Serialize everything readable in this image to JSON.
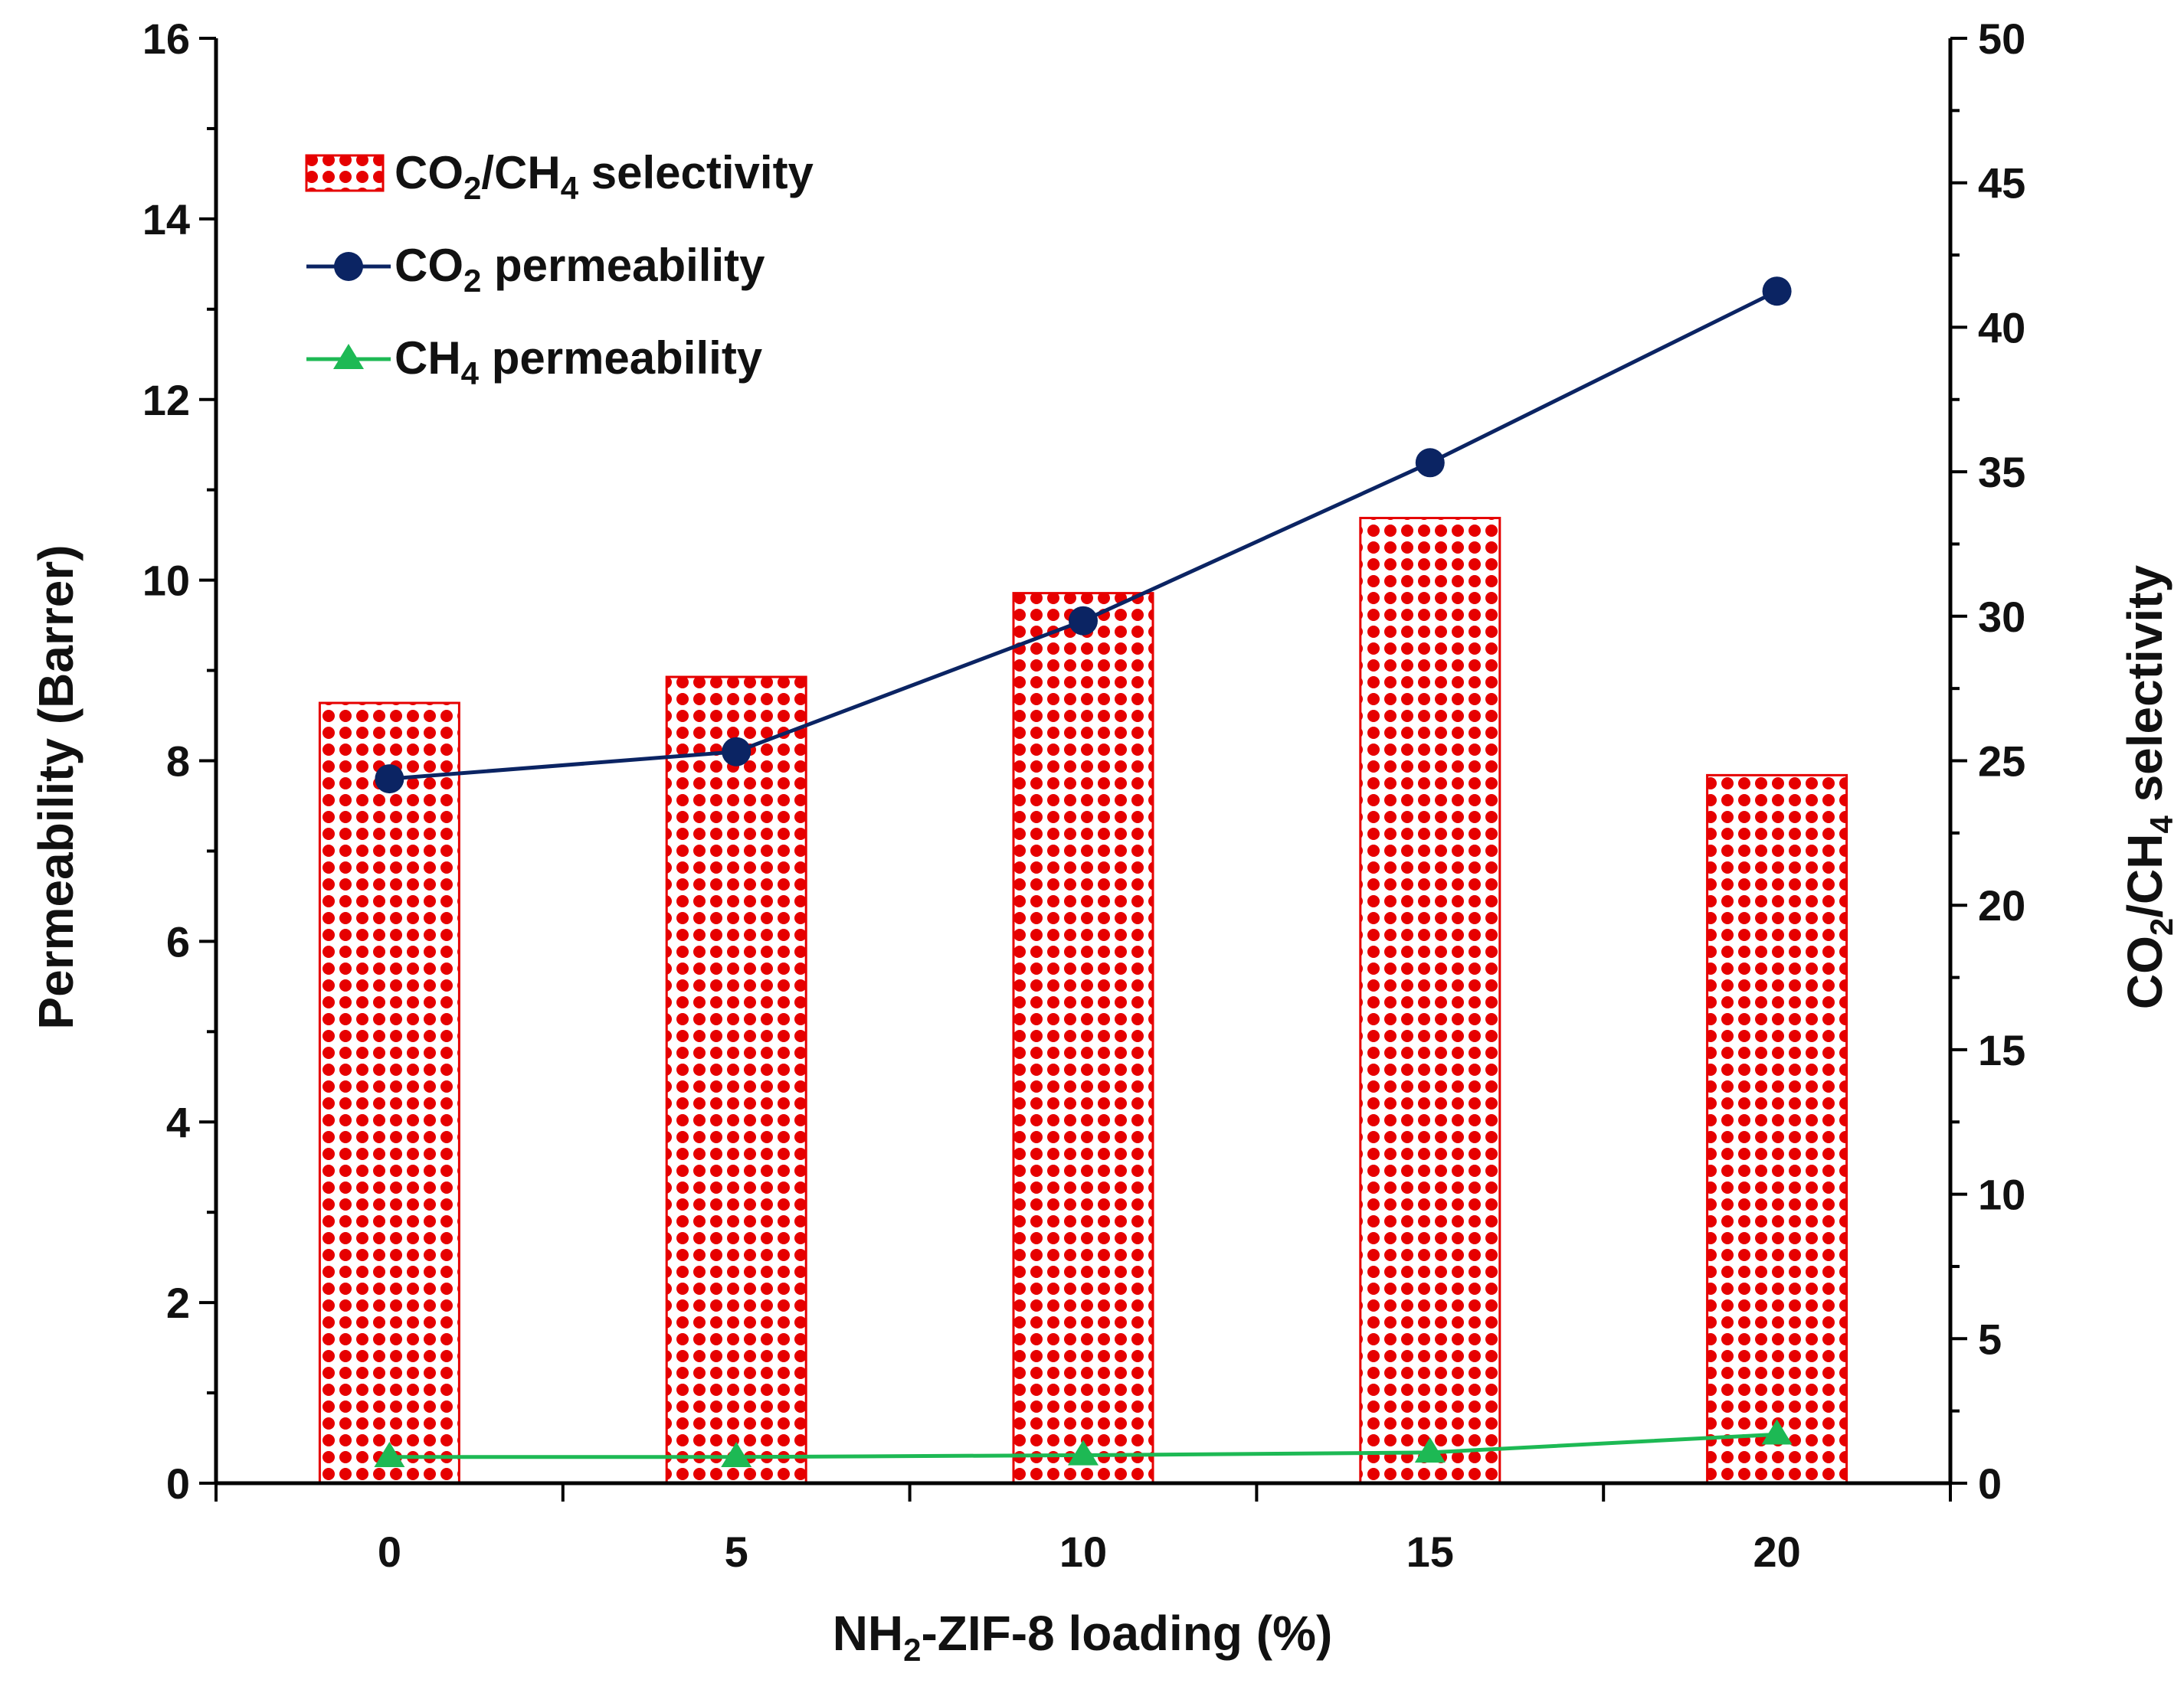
{
  "chart_data": {
    "type": "bar",
    "categories": [
      "0",
      "5",
      "10",
      "15",
      "20"
    ],
    "x_values": [
      0,
      5,
      10,
      15,
      20
    ],
    "xlabel": "NH₂-ZIF-8 loading (%)",
    "xlabel_parts": [
      "NH",
      "2",
      "-ZIF-8 loading (%)"
    ],
    "ylabel": "Permeability (Barrer)",
    "y2label": "CO₂/CH₄ selectivity",
    "y2label_parts": [
      "CO",
      "2",
      "/CH",
      "4",
      " selectivity"
    ],
    "xlim": [
      -2.5,
      22.5
    ],
    "ylim": [
      0,
      16
    ],
    "y2lim": [
      0,
      50
    ],
    "y_ticks": [
      0,
      2,
      4,
      6,
      8,
      10,
      12,
      14,
      16
    ],
    "y2_ticks": [
      0,
      5,
      10,
      15,
      20,
      25,
      30,
      35,
      40,
      45,
      50
    ],
    "grid": false,
    "legend_position": "top-left",
    "series": [
      {
        "name": "CO₂/CH₄ selectivity",
        "name_parts": [
          "CO",
          "2",
          "/CH",
          "4",
          " selectivity"
        ],
        "kind": "bar",
        "axis": "right",
        "color": "#e60000",
        "values": [
          27.0,
          27.9,
          30.8,
          33.4,
          24.5
        ]
      },
      {
        "name": "CO₂ permeability",
        "name_parts": [
          "CO",
          "2",
          " permeability",
          "",
          ""
        ],
        "kind": "line",
        "marker": "circle",
        "axis": "left",
        "color": "#0b2463",
        "values": [
          7.8,
          8.1,
          9.55,
          11.3,
          13.2
        ]
      },
      {
        "name": "CH₄ permeability",
        "name_parts": [
          "CH",
          "4",
          " permeability",
          "",
          ""
        ],
        "kind": "line",
        "marker": "triangle",
        "axis": "left",
        "color": "#1db954",
        "values": [
          0.29,
          0.29,
          0.31,
          0.34,
          0.54
        ]
      }
    ]
  }
}
